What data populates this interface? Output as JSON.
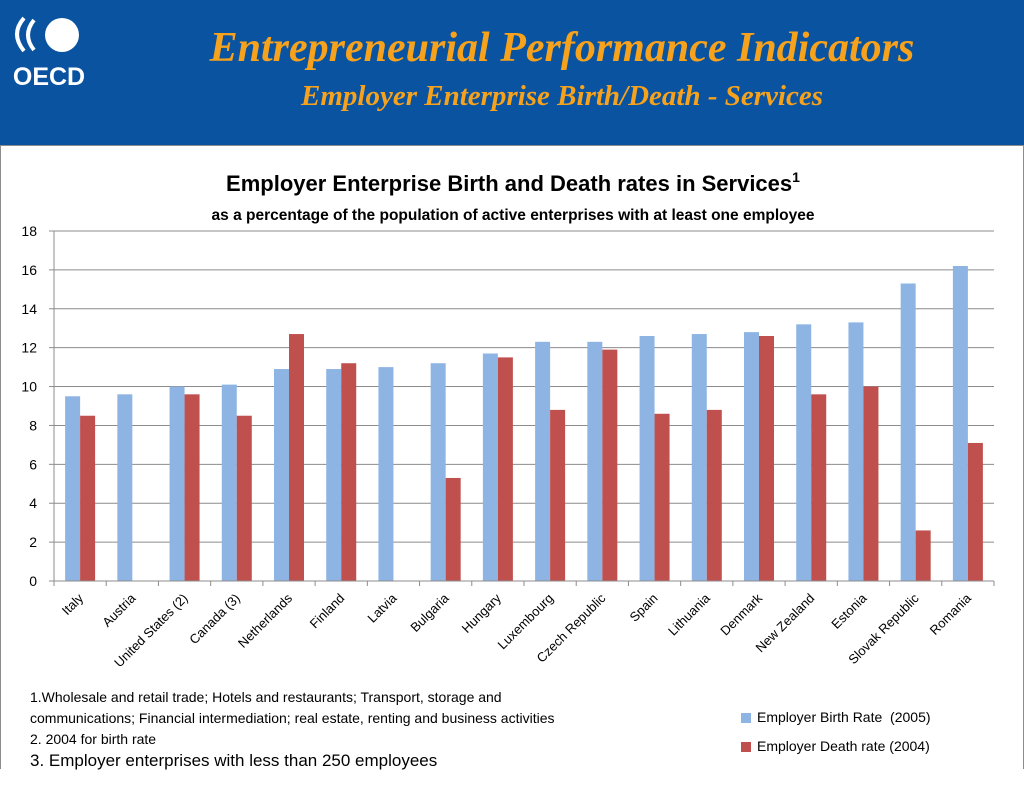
{
  "header": {
    "logo_text": "OECD",
    "title": "Entrepreneurial Performance Indicators",
    "subtitle": "Employer Enterprise Birth/Death - Services"
  },
  "chart_data": {
    "type": "bar",
    "title": "Employer Enterprise Birth and Death rates in Services",
    "title_superscript": "1",
    "subtitle": "as a percentage of the population of active enterprises with at least one employee",
    "xlabel": "",
    "ylabel": "",
    "ylim": [
      0,
      18
    ],
    "yticks": [
      0,
      2,
      4,
      6,
      8,
      10,
      12,
      14,
      16,
      18
    ],
    "grid": true,
    "legend_position": "bottom-right",
    "categories": [
      "Italy",
      "Austria",
      "United States (2)",
      "Canada (3)",
      "Netherlands",
      "Finland",
      "Latvia",
      "Bulgaria",
      "Hungary",
      "Luxembourg",
      "Czech Republic",
      "Spain",
      "Lithuania",
      "Denmark",
      "New Zealand",
      "Estonia",
      "Slovak Republic",
      "Romania"
    ],
    "series": [
      {
        "name": "Employer Birth Rate  (2005)",
        "color": "#8eb4e3",
        "values": [
          9.5,
          9.6,
          10.0,
          10.1,
          10.9,
          10.9,
          11.0,
          11.2,
          11.7,
          12.3,
          12.3,
          12.6,
          12.7,
          12.8,
          13.2,
          13.3,
          15.3,
          16.2
        ]
      },
      {
        "name": "Employer Death rate (2004)",
        "color": "#c0504d",
        "values": [
          8.5,
          null,
          9.6,
          8.5,
          12.7,
          11.2,
          null,
          5.3,
          11.5,
          8.8,
          11.9,
          8.6,
          8.8,
          12.6,
          9.6,
          10.0,
          2.6,
          7.1
        ]
      }
    ]
  },
  "footnotes": [
    "1.Wholesale and retail trade; Hotels and restaurants; Transport, storage and",
    "communications; Financial intermediation; real estate, renting and business activities",
    "2. 2004 for birth rate",
    "3. Employer enterprises with less than 250 employees"
  ]
}
